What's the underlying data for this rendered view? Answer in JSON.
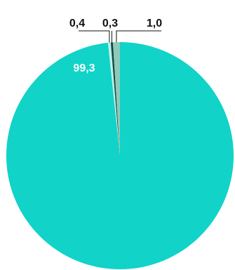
{
  "chart_data": {
    "type": "pie",
    "title": "",
    "slices": [
      {
        "label": "99,3",
        "value": 99.3,
        "color": "#11d3c8"
      },
      {
        "label": "0,4",
        "value": 0.4,
        "color": "#bff0ea"
      },
      {
        "label": "0,3",
        "value": 0.3,
        "color": "#0d4a3f"
      },
      {
        "label": "1,0",
        "value": 1.0,
        "color": "#8fc9b9"
      }
    ],
    "label_colors": {
      "inside": "#ffffff",
      "outside": "#111111"
    }
  }
}
